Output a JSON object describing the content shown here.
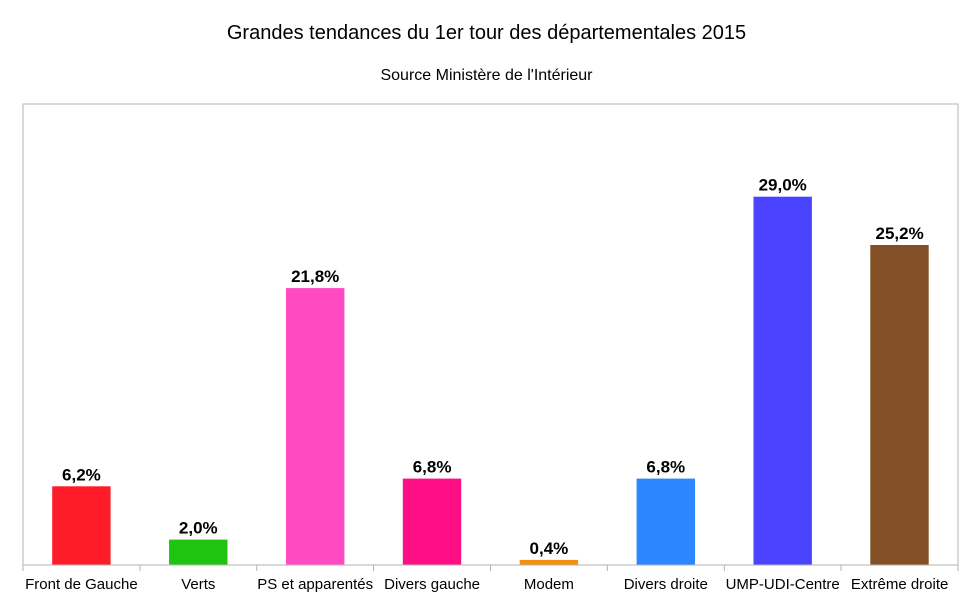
{
  "chart_data": {
    "type": "bar",
    "title": "Grandes tendances du 1er tour des départementales 2015",
    "subtitle": "Source Ministère de l'Intérieur",
    "xlabel": "",
    "ylabel": "",
    "ylim": [
      0,
      36.3
    ],
    "grid": false,
    "legend": "none",
    "categories": [
      "Front de Gauche",
      "Verts",
      "PS et apparentés",
      "Divers gauche",
      "Modem",
      "Divers droite",
      "UMP-UDI-Centre",
      "Extrême droite"
    ],
    "values": [
      6.2,
      2.0,
      21.8,
      6.8,
      0.4,
      6.8,
      29.0,
      25.2
    ],
    "value_labels": [
      "6,2%",
      "2,0%",
      "21,8%",
      "6,8%",
      "0,4%",
      "6,8%",
      "29,0%",
      "25,2%"
    ],
    "colors": [
      "#ff1c29",
      "#1ec40f",
      "#ff4ac4",
      "#ff0f86",
      "#f5900f",
      "#2b86ff",
      "#4a44ff",
      "#834f26"
    ]
  }
}
